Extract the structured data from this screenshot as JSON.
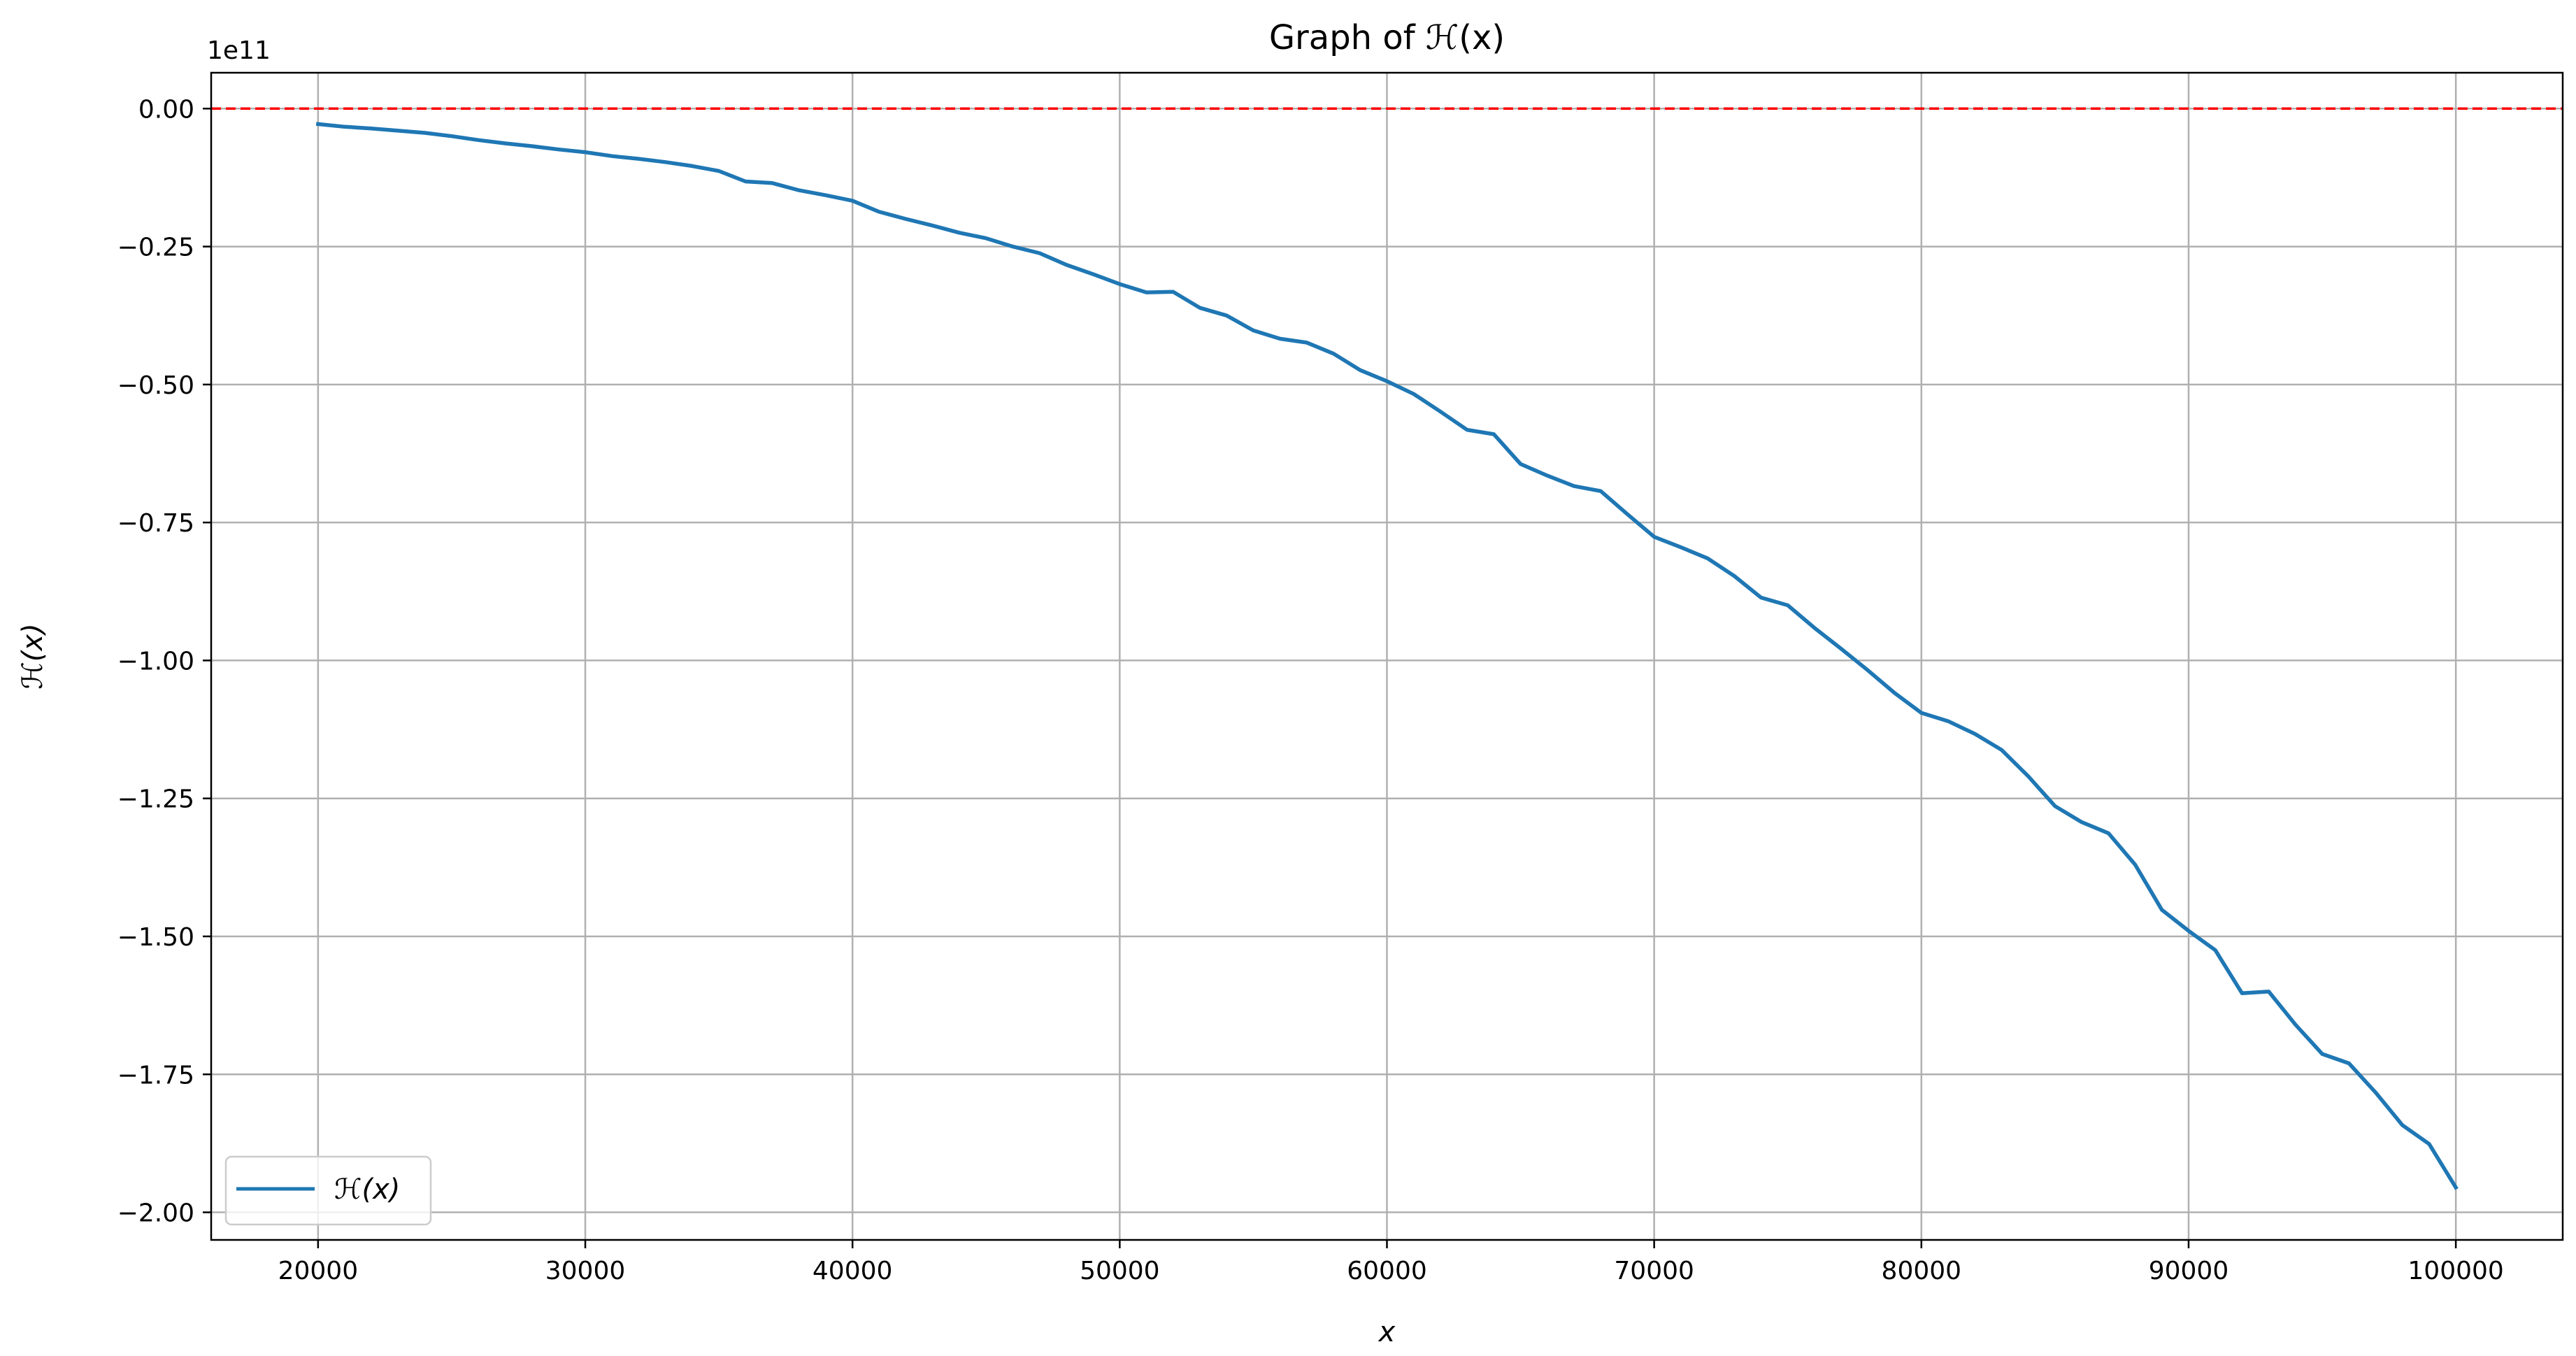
{
  "chart_data": {
    "type": "line",
    "title": "Graph of ℋ(x)",
    "xlabel": "x",
    "ylabel": "ℋ(x)",
    "y_offset_label": "1e11",
    "xlim": [
      16000,
      104000
    ],
    "ylim": [
      -2.05,
      0.065
    ],
    "y_scale_multiplier": 100000000000.0,
    "grid": true,
    "legend_position": "lower-left",
    "x_ticks": [
      20000,
      30000,
      40000,
      50000,
      60000,
      70000,
      80000,
      90000,
      100000
    ],
    "x_tick_labels": [
      "20000",
      "30000",
      "40000",
      "50000",
      "60000",
      "70000",
      "80000",
      "90000",
      "100000"
    ],
    "y_ticks": [
      0.0,
      -0.25,
      -0.5,
      -0.75,
      -1.0,
      -1.25,
      -1.5,
      -1.75,
      -2.0
    ],
    "y_tick_labels": [
      "0.00",
      "−0.25",
      "−0.50",
      "−0.75",
      "−1.00",
      "−1.25",
      "−1.50",
      "−1.75",
      "−2.00"
    ],
    "reference_line": {
      "y": 0.0,
      "color": "#ff0000",
      "style": "dashed"
    },
    "series": [
      {
        "name": "ℋ(x)",
        "color": "#1f77b4",
        "x": [
          20000,
          21000,
          22000,
          23000,
          24000,
          25000,
          26000,
          27000,
          28000,
          29000,
          30000,
          31000,
          32000,
          33000,
          34000,
          35000,
          36000,
          37000,
          38000,
          39000,
          40000,
          41000,
          42000,
          43000,
          44000,
          45000,
          46000,
          47000,
          48000,
          49000,
          50000,
          51000,
          52000,
          53000,
          54000,
          55000,
          56000,
          57000,
          58000,
          59000,
          60000,
          61000,
          62000,
          63000,
          64000,
          65000,
          66000,
          67000,
          68000,
          69000,
          70000,
          71000,
          72000,
          73000,
          74000,
          75000,
          76000,
          77000,
          78000,
          79000,
          80000,
          81000,
          82000,
          83000,
          84000,
          85000,
          86000,
          87000,
          88000,
          89000,
          90000,
          91000,
          92000,
          93000,
          94000,
          95000,
          96000,
          97000,
          98000,
          99000,
          100000
        ],
        "y": [
          -0.028,
          -0.033,
          -0.036,
          -0.04,
          -0.044,
          -0.05,
          -0.057,
          -0.063,
          -0.068,
          -0.074,
          -0.079,
          -0.086,
          -0.091,
          -0.097,
          -0.104,
          -0.113,
          -0.132,
          -0.135,
          -0.148,
          -0.157,
          -0.167,
          -0.187,
          -0.2,
          -0.212,
          -0.225,
          -0.235,
          -0.25,
          -0.262,
          -0.283,
          -0.3,
          -0.318,
          -0.333,
          -0.332,
          -0.361,
          -0.375,
          -0.402,
          -0.417,
          -0.424,
          -0.444,
          -0.474,
          -0.494,
          -0.517,
          -0.549,
          -0.582,
          -0.59,
          -0.644,
          -0.665,
          -0.684,
          -0.693,
          -0.735,
          -0.776,
          -0.795,
          -0.815,
          -0.847,
          -0.886,
          -0.9,
          -0.941,
          -0.979,
          -1.018,
          -1.059,
          -1.095,
          -1.11,
          -1.133,
          -1.162,
          -1.21,
          -1.264,
          -1.293,
          -1.313,
          -1.37,
          -1.452,
          -1.49,
          -1.525,
          -1.603,
          -1.6,
          -1.66,
          -1.713,
          -1.73,
          -1.783,
          -1.842,
          -1.876,
          -1.955
        ]
      }
    ]
  }
}
